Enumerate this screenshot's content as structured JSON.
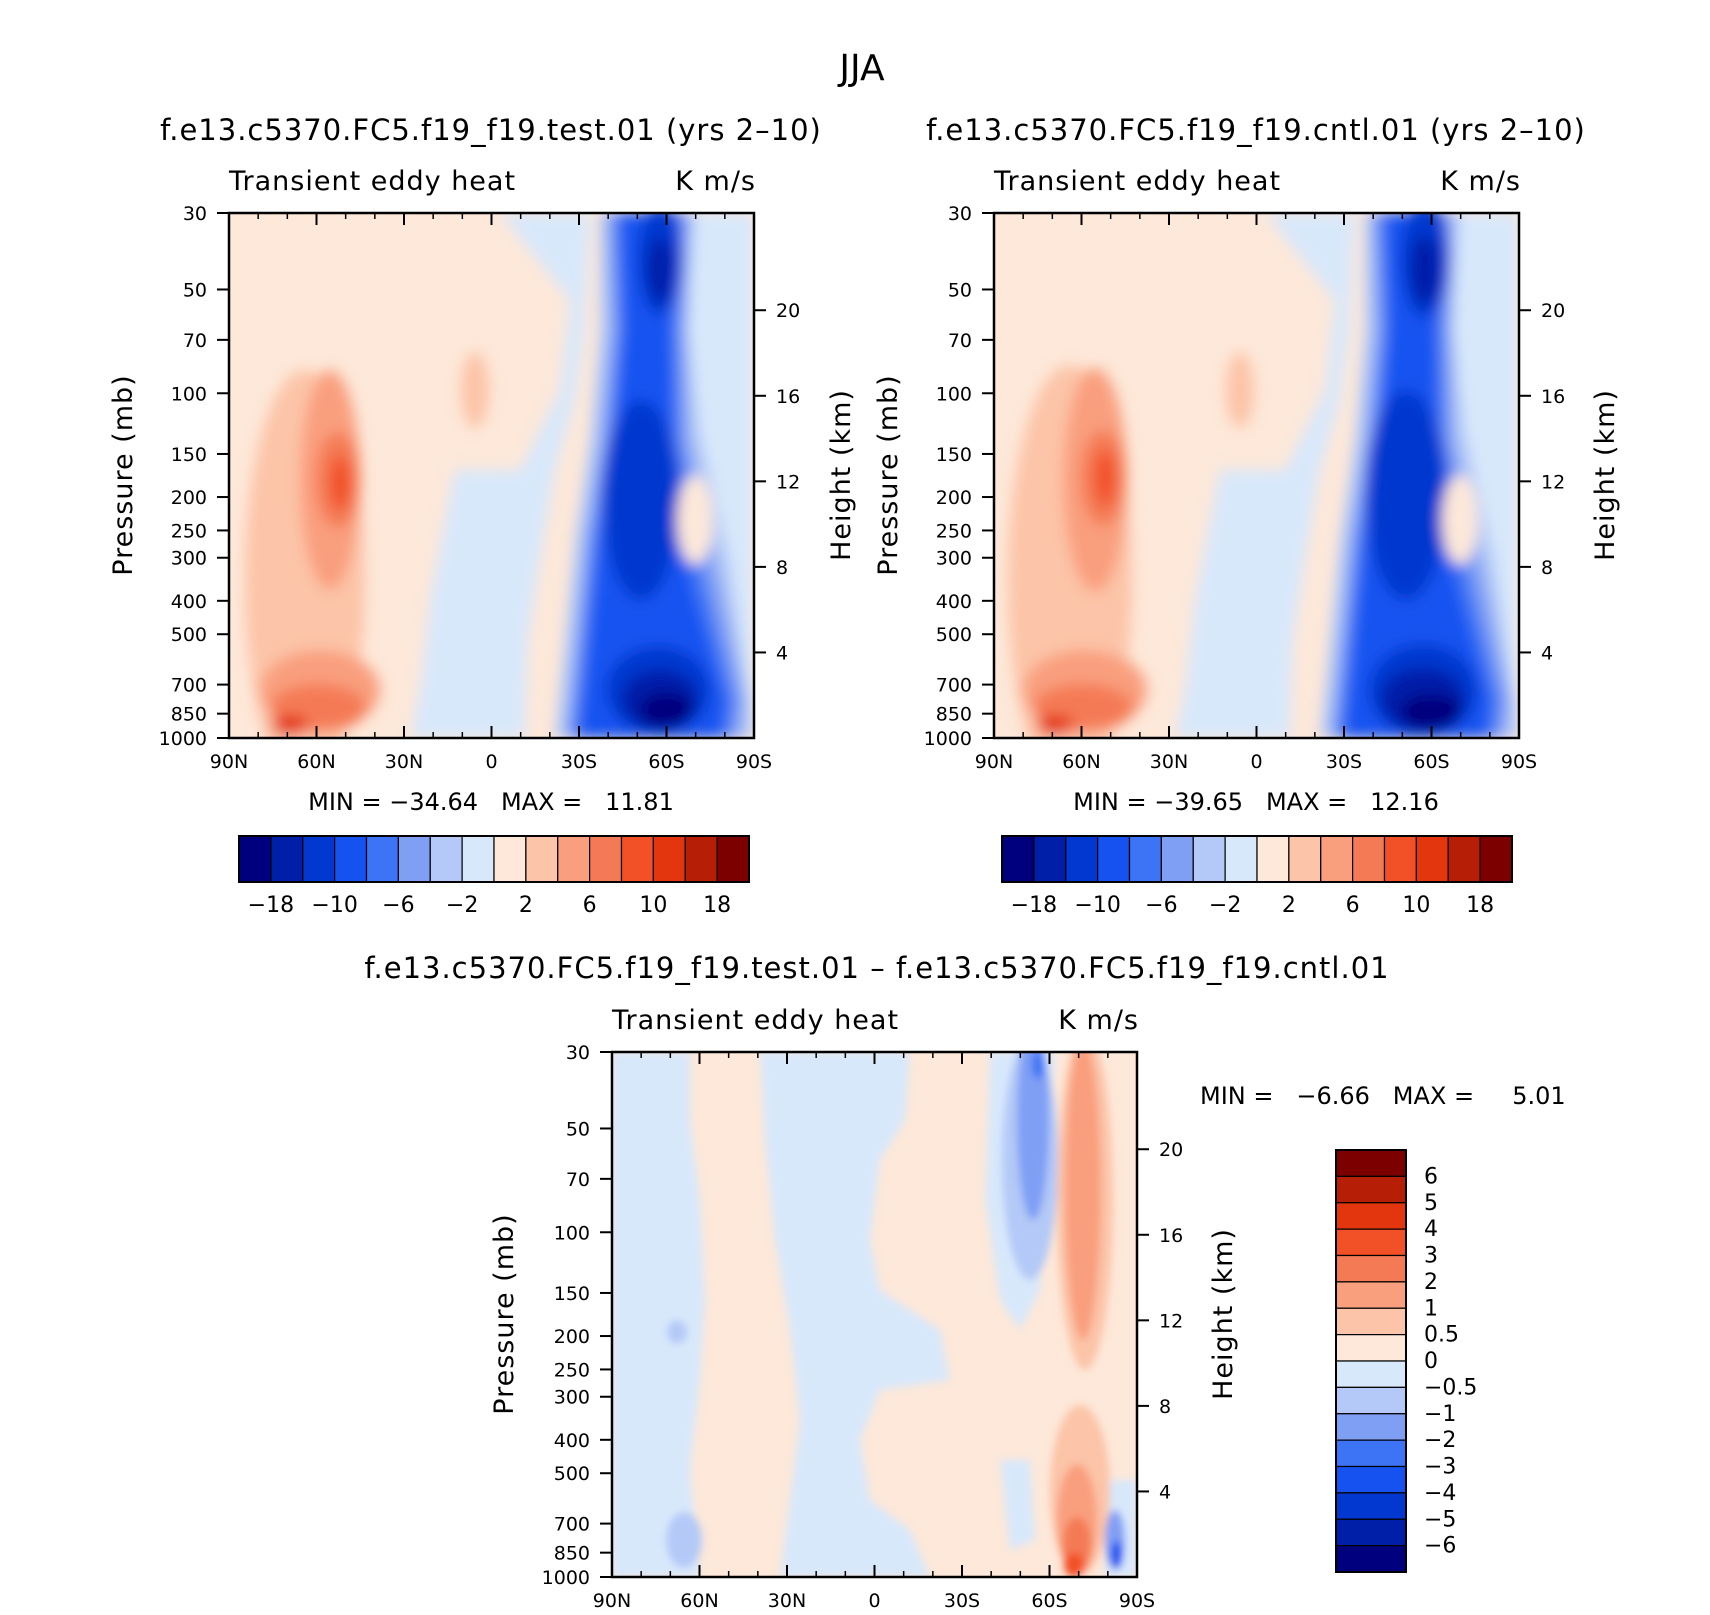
{
  "page_title": "JJA",
  "colors": {
    "diverging": [
      "#00007f",
      "#001fa8",
      "#0238cf",
      "#1552f0",
      "#3d74f5",
      "#7f9ff5",
      "#b4c9f7",
      "#d8e8fb",
      "#fde8d9",
      "#fcc4a8",
      "#f99f7e",
      "#f47a55",
      "#f25026",
      "#e3360e",
      "#b61e06",
      "#7d0000"
    ],
    "axis": "#000000",
    "background": "#ffffff"
  },
  "chart_data": [
    {
      "id": "test",
      "type": "heatmap",
      "title": "f.e13.c5370.FC5.f19_f19.test.01 (yrs 2–10)",
      "left_label": "Transient eddy heat",
      "right_label": "K m/s",
      "xlabel": "",
      "ylabel": "Pressure (mb)",
      "ylabel_right": "Height (km)",
      "x_ticks": [
        "90N",
        "60N",
        "30N",
        "0",
        "30S",
        "60S",
        "90S"
      ],
      "x_range": [
        90,
        -90
      ],
      "pressure_ticks": [
        30,
        50,
        70,
        100,
        150,
        200,
        250,
        300,
        400,
        500,
        700,
        850,
        1000
      ],
      "pressure_range": [
        30,
        1000
      ],
      "height_ticks": [
        20,
        16,
        12,
        8,
        4
      ],
      "stats_text": "MIN = −34.64   MAX =   11.81",
      "min": -34.64,
      "max": 11.81,
      "colorbar_levels": [
        -18,
        -14,
        -10,
        -8,
        -6,
        -4,
        -2,
        0,
        2,
        4,
        6,
        8,
        10,
        14,
        18
      ],
      "colorbar_labels": [
        "−18",
        "−10",
        "−6",
        "−2",
        "2",
        "6",
        "10",
        "18"
      ],
      "features": [
        {
          "lat": 50,
          "p": 180,
          "value": 8,
          "desc": "upper max"
        },
        {
          "lat": 68,
          "p": 950,
          "value": 11.81,
          "desc": "surface max"
        },
        {
          "lat": -52,
          "p": 900,
          "value": -34.64,
          "desc": "surface min"
        },
        {
          "lat": -50,
          "p": 180,
          "value": -20,
          "desc": "upper min"
        }
      ]
    },
    {
      "id": "cntl",
      "type": "heatmap",
      "title": "f.e13.c5370.FC5.f19_f19.cntl.01 (yrs 2–10)",
      "left_label": "Transient eddy heat",
      "right_label": "K m/s",
      "xlabel": "",
      "ylabel": "Pressure (mb)",
      "ylabel_right": "Height (km)",
      "x_ticks": [
        "90N",
        "60N",
        "30N",
        "0",
        "30S",
        "60S",
        "90S"
      ],
      "x_range": [
        90,
        -90
      ],
      "pressure_ticks": [
        30,
        50,
        70,
        100,
        150,
        200,
        250,
        300,
        400,
        500,
        700,
        850,
        1000
      ],
      "pressure_range": [
        30,
        1000
      ],
      "height_ticks": [
        20,
        16,
        12,
        8,
        4
      ],
      "stats_text": "MIN = −39.65   MAX =   12.16",
      "min": -39.65,
      "max": 12.16,
      "colorbar_levels": [
        -18,
        -14,
        -10,
        -8,
        -6,
        -4,
        -2,
        0,
        2,
        4,
        6,
        8,
        10,
        14,
        18
      ],
      "colorbar_labels": [
        "−18",
        "−10",
        "−6",
        "−2",
        "2",
        "6",
        "10",
        "18"
      ],
      "features": [
        {
          "lat": 50,
          "p": 180,
          "value": 8,
          "desc": "upper max"
        },
        {
          "lat": 68,
          "p": 950,
          "value": 12.16,
          "desc": "surface max"
        },
        {
          "lat": -52,
          "p": 900,
          "value": -39.65,
          "desc": "surface min"
        },
        {
          "lat": -50,
          "p": 180,
          "value": -22,
          "desc": "upper min"
        }
      ]
    },
    {
      "id": "diff",
      "type": "heatmap",
      "title": "f.e13.c5370.FC5.f19_f19.test.01 – f.e13.c5370.FC5.f19_f19.cntl.01",
      "left_label": "Transient eddy heat",
      "right_label": "K m/s",
      "xlabel": "",
      "ylabel": "Pressure (mb)",
      "ylabel_right": "Height (km)",
      "x_ticks": [
        "90N",
        "60N",
        "30N",
        "0",
        "30S",
        "60S",
        "90S"
      ],
      "x_range": [
        90,
        -90
      ],
      "pressure_ticks": [
        30,
        50,
        70,
        100,
        150,
        200,
        250,
        300,
        400,
        500,
        700,
        850,
        1000
      ],
      "pressure_range": [
        30,
        1000
      ],
      "height_ticks": [
        20,
        16,
        12,
        8,
        4
      ],
      "stats_text": "MIN =   −6.66   MAX =     5.01",
      "min": -6.66,
      "max": 5.01,
      "colorbar_levels": [
        6,
        5,
        4,
        3,
        2,
        1,
        0.5,
        0,
        -0.5,
        -1,
        -2,
        -3,
        -4,
        -5,
        -6
      ],
      "colorbar_labels": [
        "6",
        "5",
        "4",
        "3",
        "2",
        "1",
        "0.5",
        "0",
        "−0.5",
        "−1",
        "−2",
        "−3",
        "−4",
        "−5",
        "−6"
      ],
      "features": [
        {
          "lat": -55,
          "p": 60,
          "value": -2.5,
          "desc": "upper negative band"
        },
        {
          "lat": -65,
          "p": 120,
          "value": 2.5,
          "desc": "upper positive band"
        },
        {
          "lat": -68,
          "p": 950,
          "value": 5.01,
          "desc": "surface max"
        },
        {
          "lat": -85,
          "p": 900,
          "value": -6.66,
          "desc": "surface min"
        }
      ]
    }
  ]
}
